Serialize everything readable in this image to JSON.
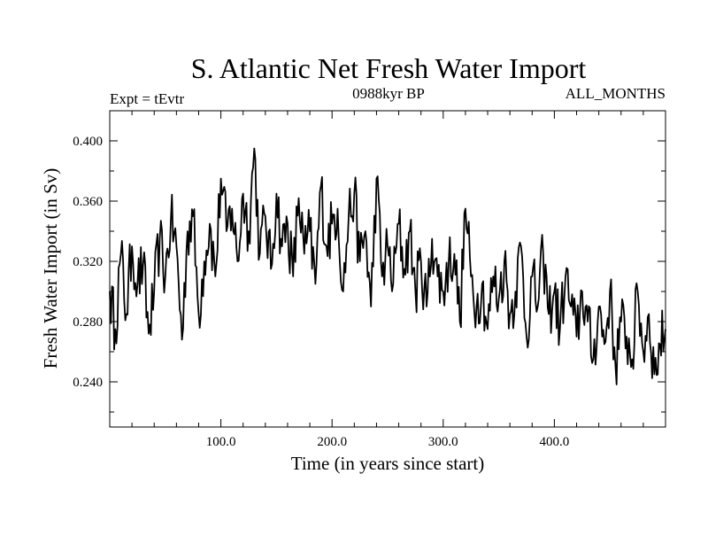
{
  "chart_data": {
    "type": "line",
    "title": "S. Atlantic Net Fresh Water Import",
    "subtitle": "0988kyr BP",
    "left_label": "Expt = tEvtr",
    "right_label": "ALL_MONTHS",
    "xlabel": "Time (in years since start)",
    "ylabel": "Fresh Water Import (in Sv)",
    "xlim": [
      0,
      500
    ],
    "ylim": [
      0.21,
      0.42
    ],
    "xticks": [
      100,
      200,
      300,
      400
    ],
    "xtick_labels": [
      "100.0",
      "200.0",
      "300.0",
      "400.0"
    ],
    "yticks": [
      0.24,
      0.28,
      0.32,
      0.36,
      0.4
    ],
    "ytick_labels": [
      "0.240",
      "0.280",
      "0.320",
      "0.360",
      "0.400"
    ],
    "grid": false,
    "series": [
      {
        "name": "Fresh Water Import",
        "x": [
          0,
          5,
          10,
          15,
          20,
          25,
          30,
          35,
          40,
          45,
          50,
          55,
          60,
          65,
          70,
          75,
          80,
          85,
          90,
          95,
          100,
          105,
          110,
          115,
          120,
          125,
          130,
          135,
          140,
          145,
          150,
          155,
          160,
          165,
          170,
          175,
          180,
          185,
          190,
          195,
          200,
          205,
          210,
          215,
          220,
          225,
          230,
          235,
          240,
          245,
          250,
          255,
          260,
          265,
          270,
          275,
          280,
          285,
          290,
          295,
          300,
          305,
          310,
          315,
          320,
          325,
          330,
          335,
          340,
          345,
          350,
          355,
          360,
          365,
          370,
          375,
          380,
          385,
          390,
          395,
          400,
          405,
          410,
          415,
          420,
          425,
          430,
          435,
          440,
          445,
          450,
          455,
          460,
          465,
          470,
          475,
          480,
          485,
          490,
          495,
          500
        ],
        "values": [
          0.3,
          0.275,
          0.325,
          0.285,
          0.33,
          0.305,
          0.318,
          0.272,
          0.3,
          0.335,
          0.31,
          0.348,
          0.33,
          0.268,
          0.34,
          0.35,
          0.285,
          0.32,
          0.345,
          0.31,
          0.375,
          0.34,
          0.355,
          0.32,
          0.365,
          0.34,
          0.395,
          0.325,
          0.35,
          0.315,
          0.365,
          0.33,
          0.345,
          0.31,
          0.362,
          0.325,
          0.34,
          0.305,
          0.37,
          0.33,
          0.345,
          0.355,
          0.3,
          0.35,
          0.365,
          0.32,
          0.34,
          0.29,
          0.375,
          0.31,
          0.33,
          0.305,
          0.345,
          0.315,
          0.34,
          0.3,
          0.32,
          0.29,
          0.335,
          0.31,
          0.3,
          0.32,
          0.325,
          0.28,
          0.355,
          0.31,
          0.29,
          0.305,
          0.275,
          0.31,
          0.295,
          0.32,
          0.285,
          0.3,
          0.33,
          0.27,
          0.31,
          0.29,
          0.325,
          0.285,
          0.3,
          0.275,
          0.31,
          0.29,
          0.27,
          0.3,
          0.28,
          0.255,
          0.29,
          0.265,
          0.3,
          0.25,
          0.28,
          0.27,
          0.255,
          0.3,
          0.26,
          0.285,
          0.245,
          0.265,
          0.275
        ]
      }
    ]
  }
}
